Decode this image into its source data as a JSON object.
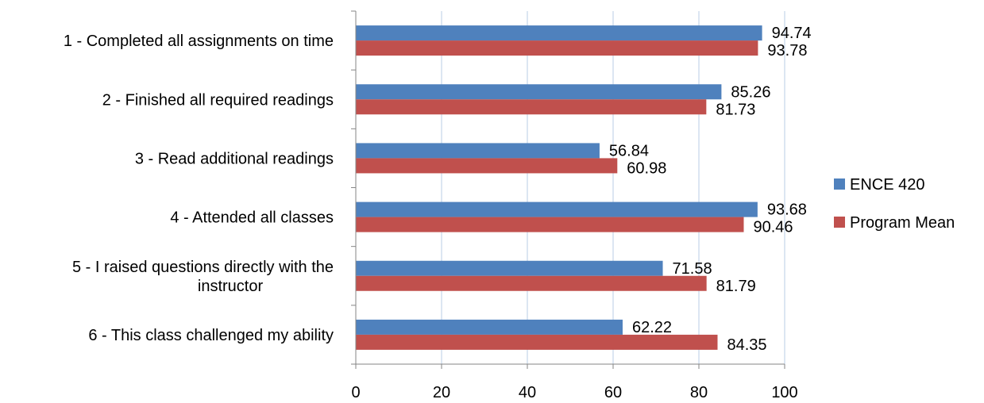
{
  "chart_data": {
    "type": "bar",
    "orientation": "horizontal",
    "categories": [
      "1 - Completed all assignments on time",
      "2 - Finished all required readings",
      "3 - Read additional readings",
      "4 - Attended all classes",
      "5 - I raised questions directly with the instructor",
      "6 - This class challenged my ability"
    ],
    "category_lines": [
      [
        "1 - Completed all assignments on time"
      ],
      [
        "2 - Finished all required readings"
      ],
      [
        "3 - Read additional readings"
      ],
      [
        "4 - Attended all classes"
      ],
      [
        "5 - I raised questions directly with the",
        "instructor"
      ],
      [
        "6 - This class challenged my ability"
      ]
    ],
    "series": [
      {
        "name": "ENCE 420",
        "color": "#4F81BD",
        "values": [
          94.74,
          85.26,
          56.84,
          93.68,
          71.58,
          62.22
        ],
        "labels": [
          "94.74",
          "85.26",
          "56.84",
          "93.68",
          "71.58",
          "62.22"
        ]
      },
      {
        "name": "Program Mean",
        "color": "#C0504D",
        "values": [
          93.78,
          81.73,
          60.98,
          90.46,
          81.79,
          84.35
        ],
        "labels": [
          "93.78",
          "81.73",
          "60.98",
          "90.46",
          "81.79",
          "84.35"
        ]
      }
    ],
    "xlim": [
      0,
      100
    ],
    "xticks": [
      0,
      20,
      40,
      60,
      80,
      100
    ],
    "xtick_labels": [
      "0",
      "20",
      "40",
      "60",
      "80",
      "100"
    ],
    "grid": "vertical",
    "legend_position": "right",
    "title": "",
    "xlabel": "",
    "ylabel": ""
  }
}
